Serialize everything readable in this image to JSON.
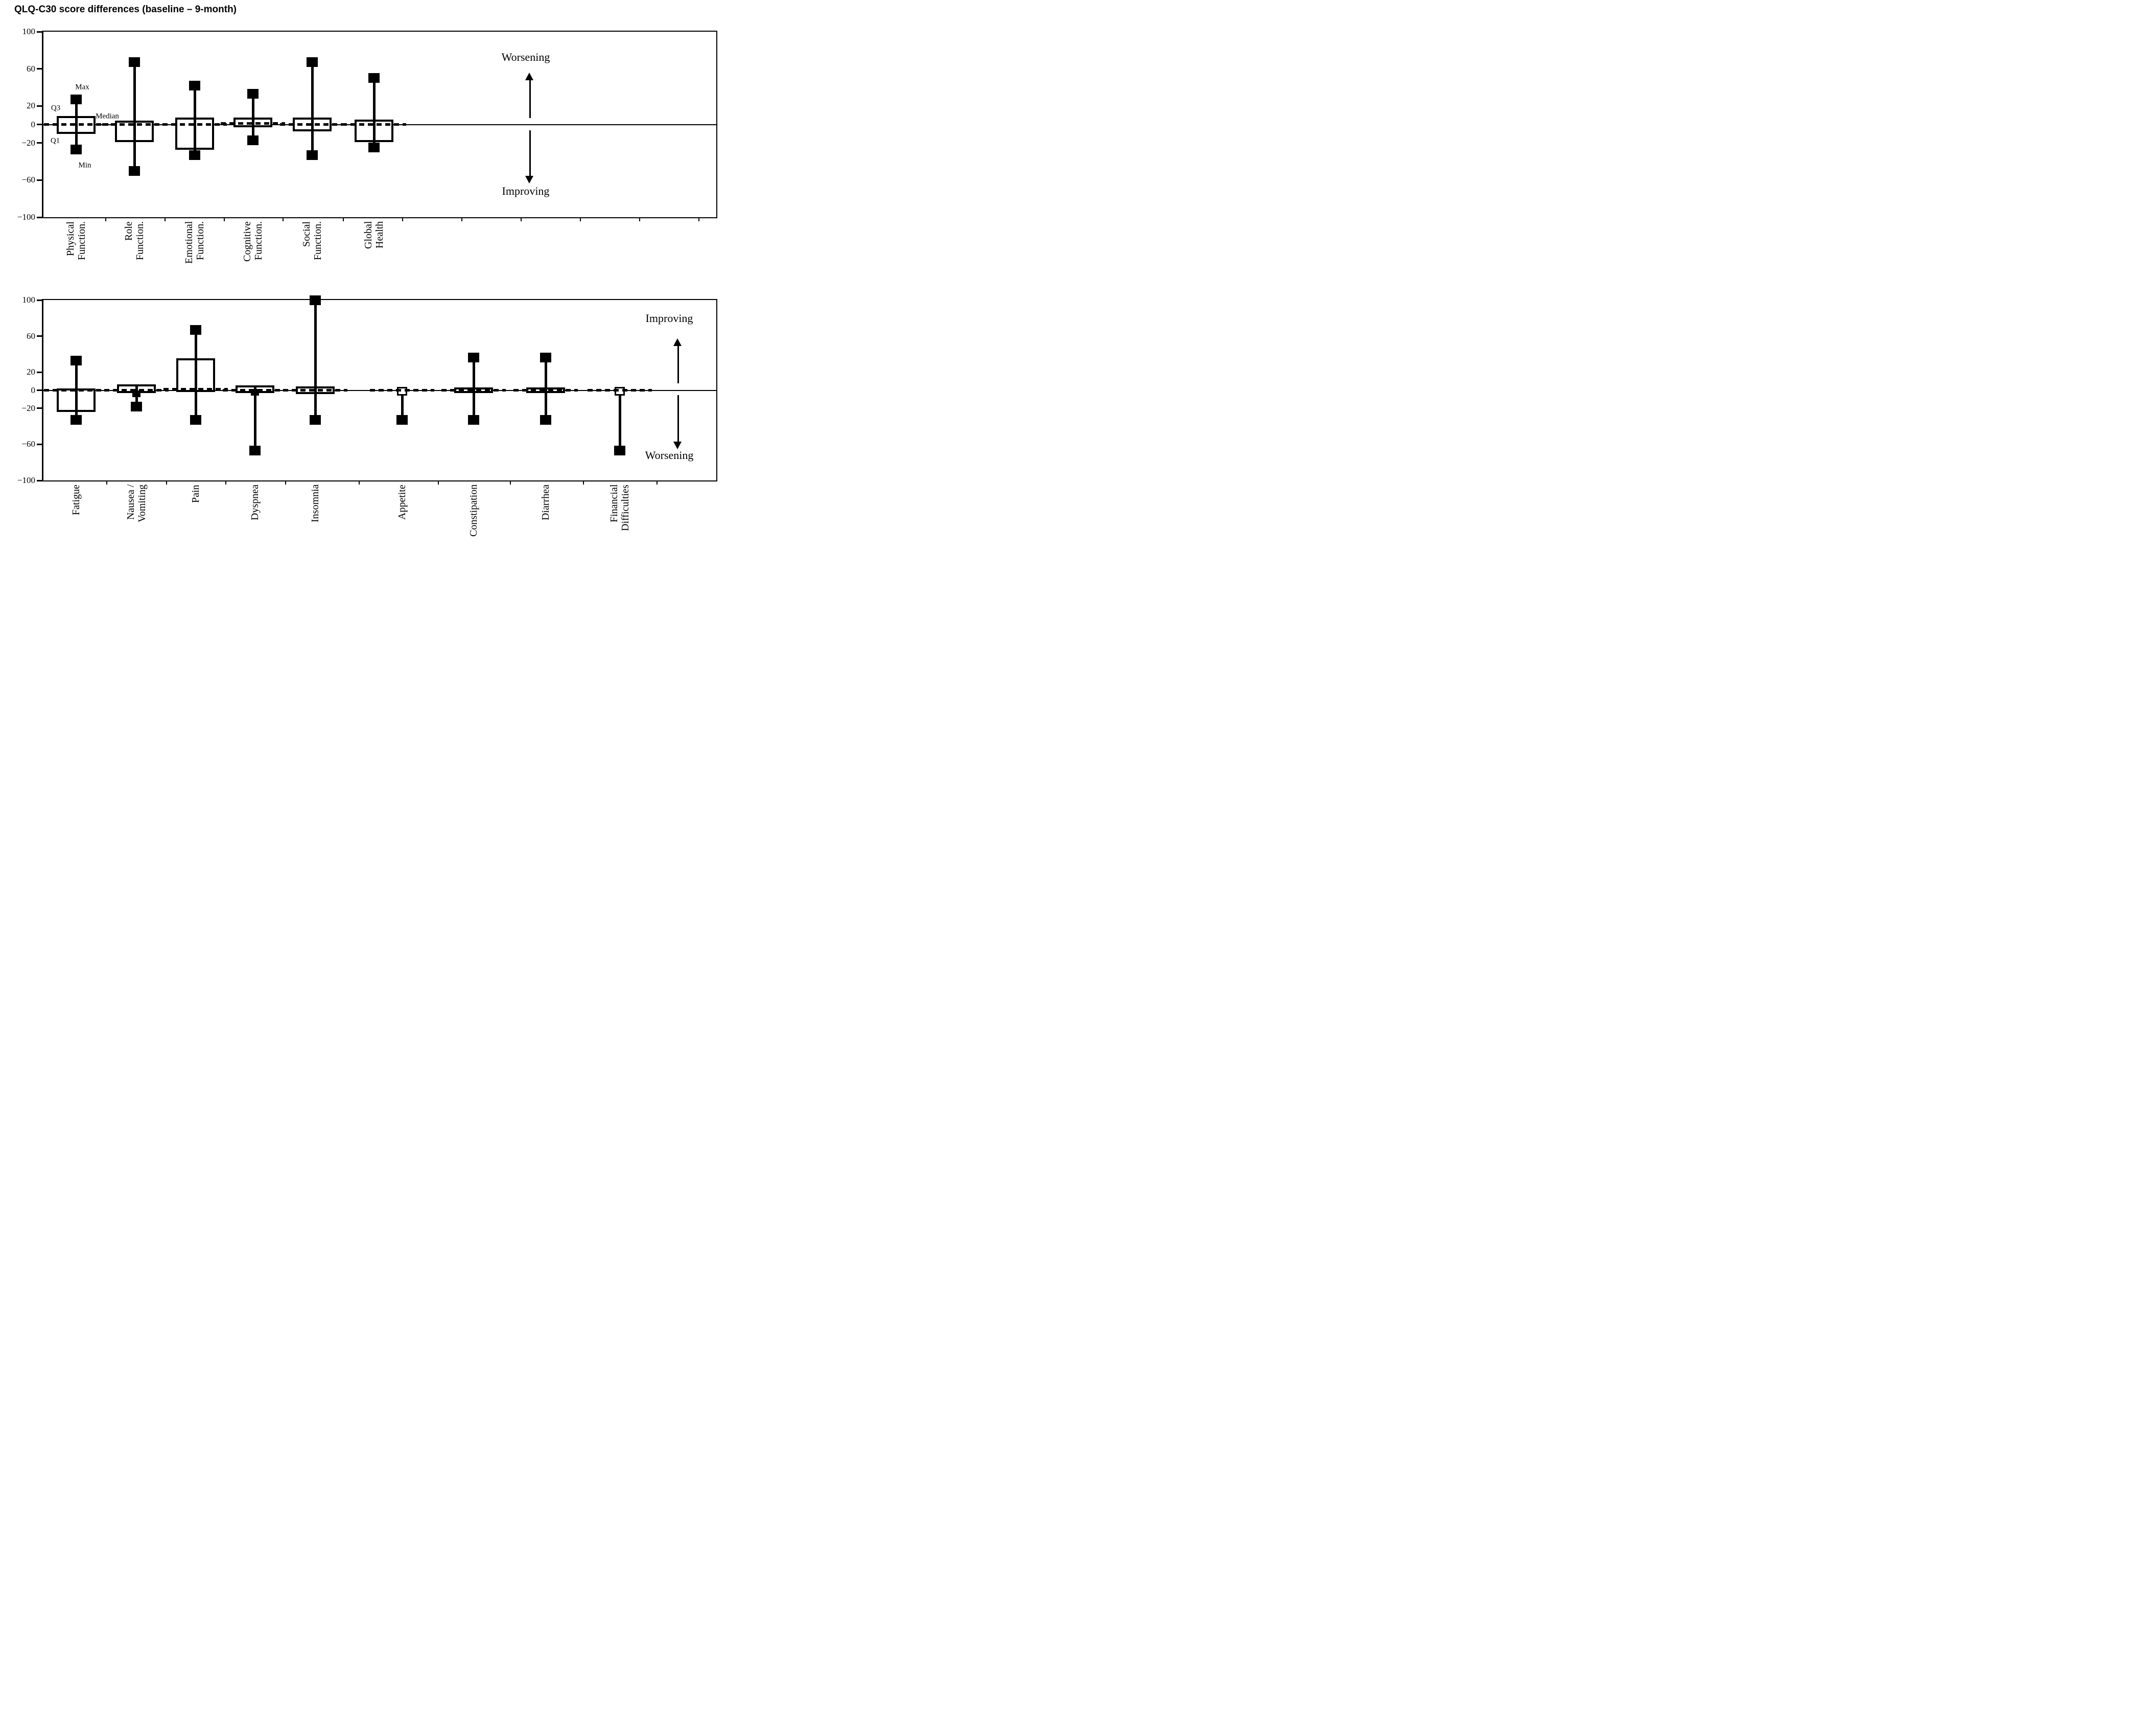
{
  "title": "QLQ-C30 score differences (baseline – 9-month)",
  "colors": {
    "ink": "#000000",
    "paper": "#ffffff"
  },
  "chart_data": [
    {
      "type": "boxplot",
      "panel": "functional-scales",
      "ylim": [
        -100,
        100
      ],
      "yticks": [
        100,
        60,
        20,
        0,
        -20,
        -60,
        -100
      ],
      "grid": false,
      "direction_up_label": "Worsening",
      "direction_down_label": "Improving",
      "stat_annotations": {
        "max": "Max",
        "q3": "Q3",
        "median": "Median",
        "q1": "Q1",
        "min": "Min"
      },
      "categories": [
        "Physical Function.",
        "Role Function.",
        "Emotional Function.",
        "Cognitive Function.",
        "Social Function.",
        "Global Health"
      ],
      "category_label_lines": [
        [
          "Physical",
          "Function."
        ],
        [
          "Role",
          "Function."
        ],
        [
          "Emotional",
          "Function."
        ],
        [
          "Cognitive",
          "Function."
        ],
        [
          "Social",
          "Function."
        ],
        [
          "Global",
          "Health"
        ]
      ],
      "series": [
        {
          "name": "Physical Function.",
          "min": -27,
          "q1": -8,
          "median": 0,
          "q3": 7,
          "max": 27
        },
        {
          "name": "Role Function.",
          "min": -50,
          "q1": -17,
          "median": 0,
          "q3": 2,
          "max": 67
        },
        {
          "name": "Emotional Function.",
          "min": -33,
          "q1": -25,
          "median": 0,
          "q3": 5,
          "max": 42
        },
        {
          "name": "Cognitive Function.",
          "min": -17,
          "q1": -1,
          "median": 1,
          "q3": 5,
          "max": 33
        },
        {
          "name": "Social Function.",
          "min": -33,
          "q1": -5,
          "median": 0,
          "q3": 5,
          "max": 67
        },
        {
          "name": "Global Health",
          "min": -25,
          "q1": -17,
          "median": 0,
          "q3": 3,
          "max": 50
        }
      ]
    },
    {
      "type": "boxplot",
      "panel": "symptom-scales",
      "ylim": [
        -100,
        100
      ],
      "yticks": [
        100,
        60,
        20,
        0,
        -20,
        -60,
        -100
      ],
      "grid": false,
      "direction_up_label": "Improving",
      "direction_down_label": "Worsening",
      "categories": [
        "Fatigue",
        "Nausea / Vomiting",
        "Pain",
        "Dyspnea",
        "Insomnia",
        "Appetite",
        "Constipation",
        "Diarrhea",
        "Financial Difficulties"
      ],
      "category_label_lines": [
        [
          "Fatigue"
        ],
        [
          "Nausea /",
          "Vomiting"
        ],
        [
          "Pain"
        ],
        [
          "Dyspnea"
        ],
        [
          "Insomnia"
        ],
        [
          "Appetite"
        ],
        [
          "Constipation"
        ],
        [
          "Diarrhea"
        ],
        [
          "Financial",
          "Difficulties"
        ]
      ],
      "series": [
        {
          "name": "Fatigue",
          "min": -33,
          "q1": -22,
          "median": 0,
          "q3": 0,
          "max": 33
        },
        {
          "name": "Nausea / Vomiting",
          "min": -18,
          "q1": -1,
          "median": 0,
          "q3": 4,
          "max": 4,
          "top_marker": -4,
          "top_marker_small": true
        },
        {
          "name": "Pain",
          "min": -33,
          "q1": 0,
          "median": 1,
          "q3": 33,
          "max": 67
        },
        {
          "name": "Dyspnea",
          "min": -67,
          "q1": -1,
          "median": 0,
          "q3": 3,
          "max": 3,
          "top_marker": -2,
          "top_marker_small": true
        },
        {
          "name": "Insomnia",
          "min": -33,
          "q1": -2,
          "median": 0,
          "q3": 2,
          "max": 100
        },
        {
          "name": "Appetite",
          "min": -33,
          "q1": 0,
          "median": 0,
          "q3": 0,
          "max": 2,
          "top_marker": -1,
          "top_marker_open": true
        },
        {
          "name": "Constipation",
          "min": -33,
          "q1": -1,
          "median": 0,
          "q3": 1,
          "max": 36
        },
        {
          "name": "Diarrhea",
          "min": -33,
          "q1": -1,
          "median": 0,
          "q3": 1,
          "max": 36
        },
        {
          "name": "Financial Difficulties",
          "min": -67,
          "q1": 0,
          "median": 0,
          "q3": 0,
          "max": 2,
          "top_marker": -1,
          "top_marker_open": true
        }
      ]
    }
  ]
}
